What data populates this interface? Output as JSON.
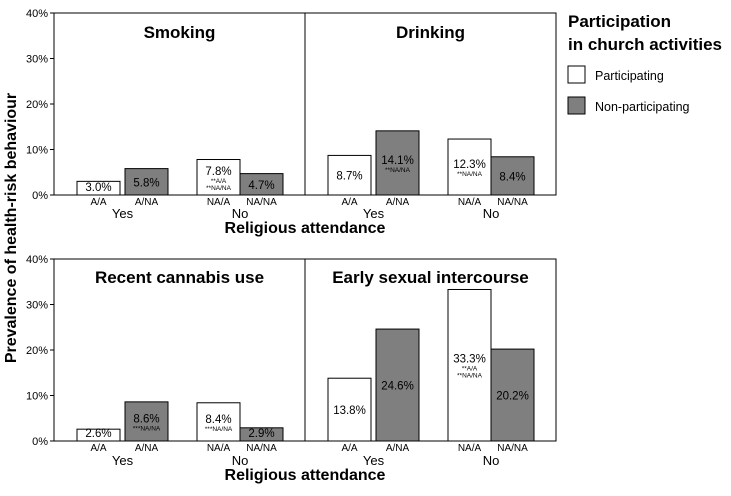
{
  "chart_data": {
    "type": "bar",
    "ylabel": "Prevalence of health-risk behaviour",
    "xlabel": "Religious attendance",
    "ylim": [
      0,
      40
    ],
    "yticks": [
      "0%",
      "10%",
      "20%",
      "30%",
      "40%"
    ],
    "legend": {
      "title_line1": "Participation",
      "title_line2": "in church activities",
      "placement": "right",
      "items": [
        {
          "label": "Participating",
          "color": "#ffffff"
        },
        {
          "label": "Non-participating",
          "color": "#7f7f7f"
        }
      ]
    },
    "groups": [
      "Yes",
      "No"
    ],
    "categories": [
      "A/A",
      "A/NA",
      "NA/A",
      "NA/NA"
    ],
    "panels": [
      {
        "title": "Smoking",
        "values": [
          3.0,
          5.8,
          7.8,
          4.7
        ],
        "labels": [
          "3.0%",
          "5.8%",
          "7.8%",
          "4.7%"
        ],
        "sig": [
          [],
          [],
          [
            "**A/A",
            "**NA/NA"
          ],
          []
        ]
      },
      {
        "title": "Drinking",
        "values": [
          8.7,
          14.1,
          12.3,
          8.4
        ],
        "labels": [
          "8.7%",
          "14.1%",
          "12.3%",
          "8.4%"
        ],
        "sig": [
          [],
          [
            "**NA/NA"
          ],
          [
            "**NA/NA"
          ],
          []
        ]
      },
      {
        "title": "Recent cannabis use",
        "values": [
          2.6,
          8.6,
          8.4,
          2.9
        ],
        "labels": [
          "2.6%",
          "8.6%",
          "8.4%",
          "2.9%"
        ],
        "sig": [
          [],
          [
            "***NA/NA"
          ],
          [
            "***NA/NA"
          ],
          []
        ]
      },
      {
        "title": "Early sexual intercourse",
        "values": [
          13.8,
          24.6,
          33.3,
          20.2
        ],
        "labels": [
          "13.8%",
          "24.6%",
          "33.3%",
          "20.2%"
        ],
        "sig": [
          [],
          [],
          [
            "**A/A",
            "**NA/NA"
          ],
          []
        ]
      }
    ]
  }
}
